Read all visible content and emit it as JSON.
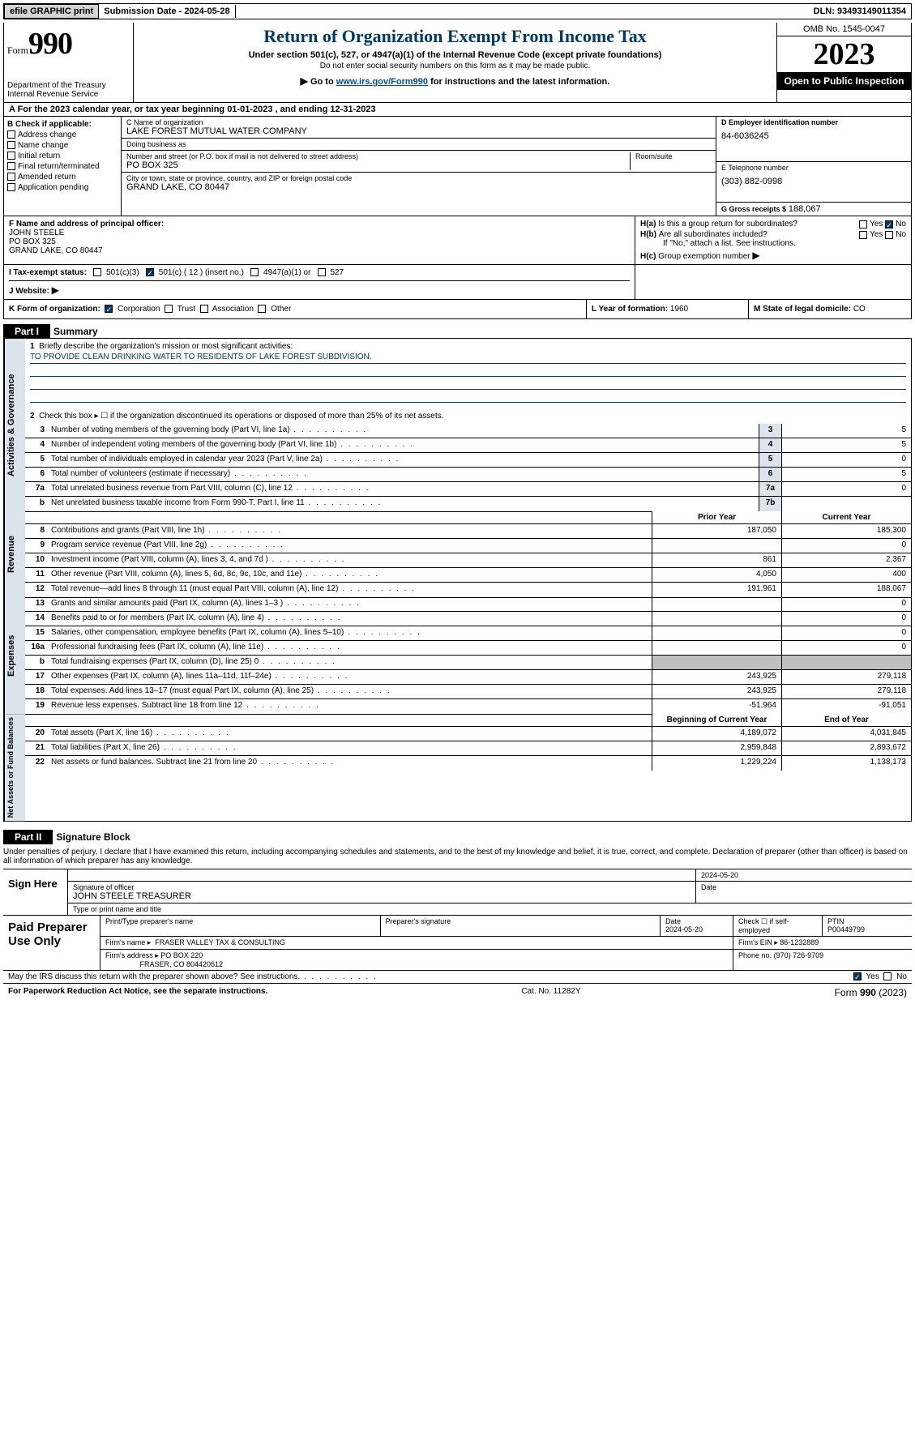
{
  "topbar": {
    "efile": "efile GRAPHIC print",
    "submission": "Submission Date - 2024-05-28",
    "dln": "DLN: 93493149011354"
  },
  "header": {
    "form_word": "Form",
    "form_num": "990",
    "title": "Return of Organization Exempt From Income Tax",
    "sub1": "Under section 501(c), 527, or 4947(a)(1) of the Internal Revenue Code (except private foundations)",
    "sub2": "Do not enter social security numbers on this form as it may be made public.",
    "sub3_pre": "Go to ",
    "sub3_link": "www.irs.gov/Form990",
    "sub3_post": " for instructions and the latest information.",
    "dept": "Department of the Treasury\nInternal Revenue Service",
    "omb": "OMB No. 1545-0047",
    "year": "2023",
    "open": "Open to Public Inspection"
  },
  "rowA": "A For the 2023 calendar year, or tax year beginning 01-01-2023   , and ending 12-31-2023",
  "boxB": {
    "title": "B Check if applicable:",
    "opts": [
      "Address change",
      "Name change",
      "Initial return",
      "Final return/terminated",
      "Amended return",
      "Application pending"
    ]
  },
  "boxC": {
    "name_label": "C Name of organization",
    "name": "LAKE FOREST MUTUAL WATER COMPANY",
    "dba_label": "Doing business as",
    "dba": "",
    "addr_label": "Number and street (or P.O. box if mail is not delivered to street address)",
    "room_label": "Room/suite",
    "addr": "PO BOX 325",
    "city_label": "City or town, state or province, country, and ZIP or foreign postal code",
    "city": "GRAND LAKE, CO  80447"
  },
  "boxD": {
    "label": "D Employer identification number",
    "val": "84-6036245"
  },
  "boxE": {
    "label": "E Telephone number",
    "val": "(303) 882-0998"
  },
  "boxG": {
    "label": "G Gross receipts $",
    "val": "188,067"
  },
  "boxF": {
    "label": "F  Name and address of principal officer:",
    "name": "JOHN STEELE",
    "addr1": "PO BOX 325",
    "addr2": "GRAND LAKE, CO  80447"
  },
  "boxH": {
    "a": "Is this a group return for subordinates?",
    "b": "Are all subordinates included?",
    "note": "If \"No,\" attach a list. See instructions.",
    "c": "Group exemption number",
    "ha_pre": "H(a)",
    "hb_pre": "H(b)",
    "hc_pre": "H(c)",
    "yes": "Yes",
    "no": "No"
  },
  "rowI": {
    "label": "I   Tax-exempt status:",
    "o1": "501(c)(3)",
    "o2": "501(c) ( 12 ) (insert no.)",
    "o3": "4947(a)(1) or",
    "o4": "527"
  },
  "rowJ": {
    "label": "J   Website:",
    "arrow": "▶"
  },
  "rowK": {
    "label": "K Form of organization:",
    "o1": "Corporation",
    "o2": "Trust",
    "o3": "Association",
    "o4": "Other"
  },
  "rowL": {
    "label": "L Year of formation:",
    "val": "1960"
  },
  "rowM": {
    "label": "M State of legal domicile:",
    "val": "CO"
  },
  "part1": {
    "hdr": "Part I",
    "title": "Summary",
    "side_gov": "Activities & Governance",
    "side_rev": "Revenue",
    "side_exp": "Expenses",
    "side_net": "Net Assets or Fund Balances",
    "l1_label": "Briefly describe the organization's mission or most significant activities:",
    "l1_val": "TO PROVIDE CLEAN DRINKING WATER TO RESIDENTS OF LAKE FOREST SUBDIVISION.",
    "l2": "Check this box ▸ ☐ if the organization discontinued its operations or disposed of more than 25% of its net assets.",
    "lines_gov": [
      {
        "n": "3",
        "t": "Number of voting members of the governing body (Part VI, line 1a)",
        "box": "3",
        "v": "5"
      },
      {
        "n": "4",
        "t": "Number of independent voting members of the governing body (Part VI, line 1b)",
        "box": "4",
        "v": "5"
      },
      {
        "n": "5",
        "t": "Total number of individuals employed in calendar year 2023 (Part V, line 2a)",
        "box": "5",
        "v": "0"
      },
      {
        "n": "6",
        "t": "Total number of volunteers (estimate if necessary)",
        "box": "6",
        "v": "5"
      },
      {
        "n": "7a",
        "t": "Total unrelated business revenue from Part VIII, column (C), line 12",
        "box": "7a",
        "v": "0"
      },
      {
        "n": "b",
        "t": "Net unrelated business taxable income from Form 990-T, Part I, line 11",
        "box": "7b",
        "v": ""
      }
    ],
    "hdr_prior": "Prior Year",
    "hdr_curr": "Current Year",
    "lines_rev": [
      {
        "n": "8",
        "t": "Contributions and grants (Part VIII, line 1h)",
        "p": "187,050",
        "c": "185,300"
      },
      {
        "n": "9",
        "t": "Program service revenue (Part VIII, line 2g)",
        "p": "",
        "c": "0"
      },
      {
        "n": "10",
        "t": "Investment income (Part VIII, column (A), lines 3, 4, and 7d )",
        "p": "861",
        "c": "2,367"
      },
      {
        "n": "11",
        "t": "Other revenue (Part VIII, column (A), lines 5, 6d, 8c, 9c, 10c, and 11e)",
        "p": "4,050",
        "c": "400"
      },
      {
        "n": "12",
        "t": "Total revenue—add lines 8 through 11 (must equal Part VIII, column (A), line 12)",
        "p": "191,961",
        "c": "188,067"
      }
    ],
    "lines_exp": [
      {
        "n": "13",
        "t": "Grants and similar amounts paid (Part IX, column (A), lines 1–3 )",
        "p": "",
        "c": "0"
      },
      {
        "n": "14",
        "t": "Benefits paid to or for members (Part IX, column (A), line 4)",
        "p": "",
        "c": "0"
      },
      {
        "n": "15",
        "t": "Salaries, other compensation, employee benefits (Part IX, column (A), lines 5–10)",
        "p": "",
        "c": "0"
      },
      {
        "n": "16a",
        "t": "Professional fundraising fees (Part IX, column (A), line 11e)",
        "p": "",
        "c": "0"
      },
      {
        "n": "b",
        "t": "Total fundraising expenses (Part IX, column (D), line 25) 0",
        "p": "SHADE",
        "c": "SHADE"
      },
      {
        "n": "17",
        "t": "Other expenses (Part IX, column (A), lines 11a–11d, 11f–24e)",
        "p": "243,925",
        "c": "279,118"
      },
      {
        "n": "18",
        "t": "Total expenses. Add lines 13–17 (must equal Part IX, column (A), line 25)",
        "p": "243,925",
        "c": "279,118"
      },
      {
        "n": "19",
        "t": "Revenue less expenses. Subtract line 18 from line 12",
        "p": "-51,964",
        "c": "-91,051"
      }
    ],
    "hdr_beg": "Beginning of Current Year",
    "hdr_end": "End of Year",
    "lines_net": [
      {
        "n": "20",
        "t": "Total assets (Part X, line 16)",
        "p": "4,189,072",
        "c": "4,031,845"
      },
      {
        "n": "21",
        "t": "Total liabilities (Part X, line 26)",
        "p": "2,959,848",
        "c": "2,893,672"
      },
      {
        "n": "22",
        "t": "Net assets or fund balances. Subtract line 21 from line 20",
        "p": "1,229,224",
        "c": "1,138,173"
      }
    ]
  },
  "part2": {
    "hdr": "Part II",
    "title": "Signature Block",
    "perjury": "Under penalties of perjury, I declare that I have examined this return, including accompanying schedules and statements, and to the best of my knowledge and belief, it is true, correct, and complete. Declaration of preparer (other than officer) is based on all information of which preparer has any knowledge.",
    "sign_here": "Sign Here",
    "sig_date": "2024-05-20",
    "sig_officer_label": "Signature of officer",
    "sig_officer": "JOHN STEELE TREASURER",
    "type_label": "Type or print name and title",
    "date_label": "Date",
    "paid": "Paid Preparer Use Only",
    "prep_name_label": "Print/Type preparer's name",
    "prep_sig_label": "Preparer's signature",
    "prep_date_label": "Date",
    "prep_date": "2024-05-20",
    "self_emp": "Check ☐ if self-employed",
    "ptin_label": "PTIN",
    "ptin": "P00449799",
    "firm_name_label": "Firm's name ▸",
    "firm_name": "FRASER VALLEY TAX & CONSULTING",
    "firm_ein_label": "Firm's EIN ▸",
    "firm_ein": "86-1232889",
    "firm_addr_label": "Firm's address ▸",
    "firm_addr1": "PO BOX 220",
    "firm_addr2": "FRASER, CO  804420612",
    "firm_phone_label": "Phone no.",
    "firm_phone": "(970) 726-9709",
    "may": "May the IRS discuss this return with the preparer shown above? See instructions.",
    "yes": "Yes",
    "no": "No"
  },
  "footer": {
    "l": "For Paperwork Reduction Act Notice, see the separate instructions.",
    "m": "Cat. No. 11282Y",
    "r": "Form 990 (2023)"
  },
  "colors": {
    "blue": "#003a66",
    "link": "#004b9b",
    "side": "#dbe4eb",
    "shade": "#c0c0c0"
  }
}
